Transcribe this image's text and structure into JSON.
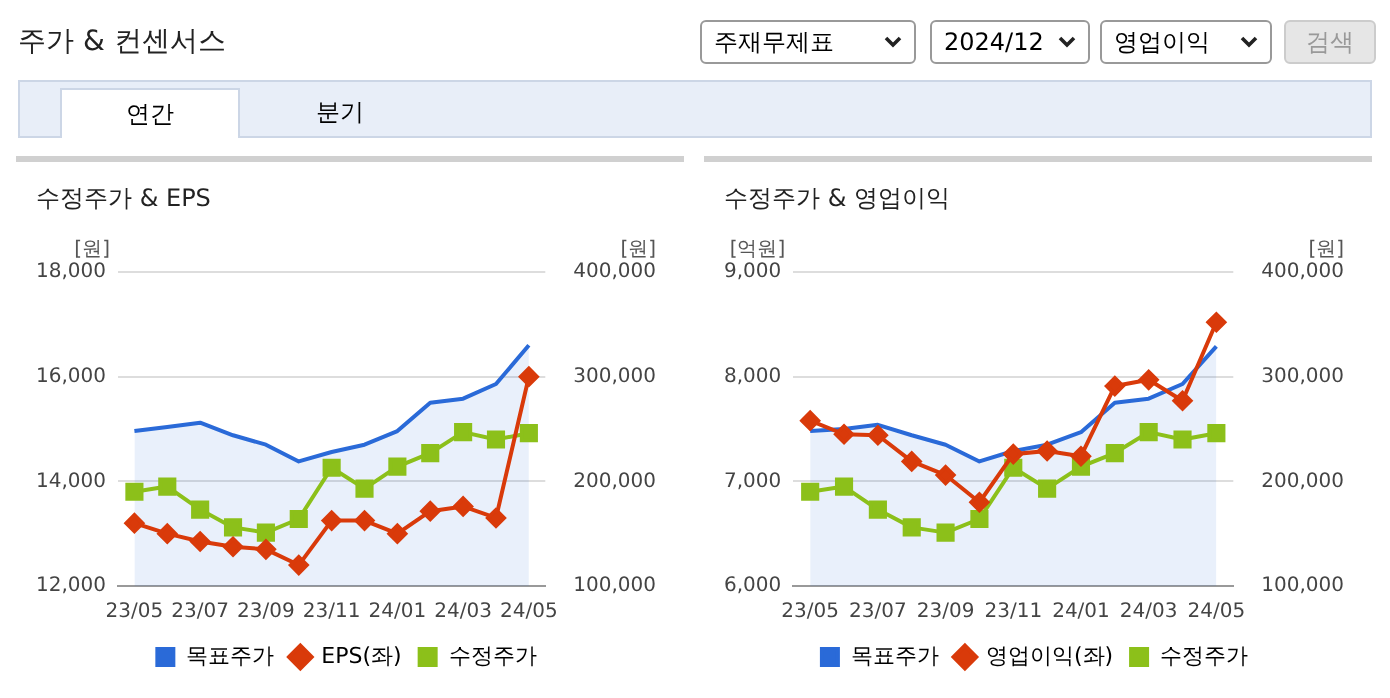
{
  "chart_data": [
    {
      "type": "line",
      "title": "수정주가 & EPS",
      "ylabel": "[원]",
      "y2label": "[원]",
      "annotations": [
        "주가 & 컨센서스",
        "주재무제표",
        "2024/12",
        "영업이익",
        "검색",
        "연간",
        "분기"
      ],
      "categories": [
        "23/05",
        null,
        "23/07",
        null,
        "23/09",
        null,
        "23/11",
        null,
        "24/01",
        null,
        "24/03",
        null,
        "24/05"
      ],
      "series": [
        {
          "name": "목표주가",
          "type": "area",
          "axis": "y2",
          "color": "#2a6ad8",
          "marker": "none",
          "values": [
            248000,
            252000,
            256000,
            244000,
            235000,
            219000,
            228000,
            235000,
            248000,
            275000,
            279000,
            293000,
            330000
          ]
        },
        {
          "name": "EPS(좌)",
          "type": "line",
          "color": "#d93a0a",
          "marker": "diamond",
          "values": [
            13200,
            13000,
            12850,
            12750,
            12700,
            12400,
            13250,
            13250,
            13000,
            13430,
            13520,
            13300,
            16000
          ]
        },
        {
          "name": "수정주가",
          "type": "line",
          "axis": "y2",
          "color": "#8cc01a",
          "marker": "square",
          "values": [
            190000,
            195000,
            173000,
            156000,
            151000,
            164000,
            213000,
            193000,
            214000,
            227000,
            247000,
            240000,
            246000
          ]
        }
      ],
      "ylim": [
        12000,
        18000
      ],
      "yticks": [
        {
          "value": 12000,
          "label": "12,000"
        },
        {
          "value": 14000,
          "label": "14,000"
        },
        {
          "value": 16000,
          "label": "16,000"
        },
        {
          "value": 18000,
          "label": "18,000"
        }
      ],
      "y2lim": [
        100000,
        400000
      ],
      "y2ticks": [
        {
          "value": 100000,
          "label": "100,000"
        },
        {
          "value": 200000,
          "label": "200,000"
        },
        {
          "value": 300000,
          "label": "300,000"
        },
        {
          "value": 400000,
          "label": "400,000"
        }
      ],
      "grid": "y",
      "legend": "bottom"
    },
    {
      "type": "line",
      "title": "수정주가 & 영업이익",
      "ylabel": "[억원]",
      "y2label": "[원]",
      "categories": [
        "23/05",
        null,
        "23/07",
        null,
        "23/09",
        null,
        "23/11",
        null,
        "24/01",
        null,
        "24/03",
        null,
        "24/05"
      ],
      "series": [
        {
          "name": "목표주가",
          "type": "area",
          "axis": "y2",
          "color": "#2a6ad8",
          "marker": "none",
          "values": [
            248000,
            250000,
            254000,
            244000,
            235000,
            219000,
            229000,
            235000,
            247000,
            275000,
            279000,
            293000,
            329000
          ]
        },
        {
          "name": "영업이익(좌)",
          "type": "line",
          "color": "#d93a0a",
          "marker": "diamond",
          "values": [
            7580,
            7450,
            7440,
            7190,
            7060,
            6800,
            7260,
            7290,
            7240,
            7910,
            7970,
            7770,
            8520
          ]
        },
        {
          "name": "수정주가",
          "type": "line",
          "axis": "y2",
          "color": "#8cc01a",
          "marker": "square",
          "values": [
            190000,
            195000,
            173000,
            156000,
            151000,
            164000,
            213000,
            193000,
            214000,
            227000,
            247000,
            240000,
            246000
          ]
        }
      ],
      "ylim": [
        6000,
        9000
      ],
      "yticks": [
        {
          "value": 6000,
          "label": "6,000"
        },
        {
          "value": 7000,
          "label": "7,000"
        },
        {
          "value": 8000,
          "label": "8,000"
        },
        {
          "value": 9000,
          "label": "9,000"
        }
      ],
      "y2lim": [
        100000,
        400000
      ],
      "y2ticks": [
        {
          "value": 100000,
          "label": "100,000"
        },
        {
          "value": 200000,
          "label": "200,000"
        },
        {
          "value": 300000,
          "label": "300,000"
        },
        {
          "value": 400000,
          "label": "400,000"
        }
      ],
      "grid": "y",
      "legend": "bottom"
    }
  ]
}
